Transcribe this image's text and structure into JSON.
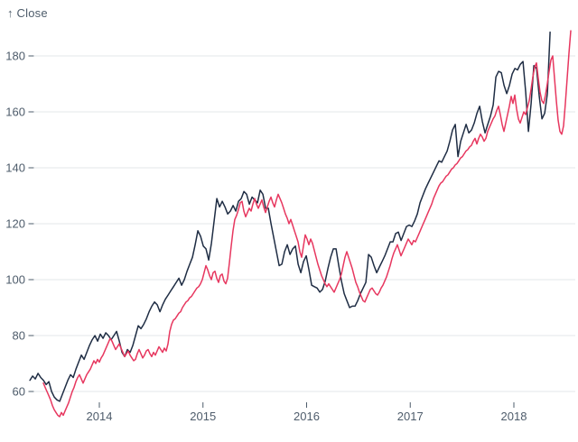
{
  "chart_data": {
    "type": "line",
    "title": "",
    "y_axis": {
      "title": "↑ Close",
      "ticks": [
        60,
        80,
        100,
        120,
        140,
        160,
        180
      ]
    },
    "x_axis": {
      "ticks": [
        2014,
        2015,
        2016,
        2017,
        2018
      ]
    },
    "xlim": [
      2013.3,
      2018.62
    ],
    "ylim": [
      50,
      194
    ],
    "grid": true,
    "legend": "none",
    "colors": {
      "navy": "#1f2d44",
      "crimson": "#e7375f",
      "axis_text": "#4e5c6b",
      "gridline": "#e3e7ea",
      "background": "#ffffff"
    },
    "series": [
      {
        "name": "dark-navy-close",
        "color": "#1f2d44",
        "start_x": 2013.33,
        "step_x": 0.026144,
        "values": [
          64,
          65.5,
          64.5,
          66.5,
          65,
          64,
          62.5,
          63.5,
          60,
          58,
          57,
          56.5,
          59,
          61.5,
          64,
          66,
          65,
          68,
          70.5,
          73,
          71.5,
          74,
          76.5,
          78.5,
          80,
          78,
          80.5,
          79,
          81,
          80,
          78.5,
          80,
          81.5,
          78,
          74,
          72.5,
          75,
          74,
          76.5,
          80,
          83.5,
          82.5,
          84,
          86,
          88.5,
          90.5,
          92,
          91,
          88.5,
          91,
          93,
          94.5,
          96,
          97.5,
          99,
          100.5,
          98,
          100,
          103,
          105.5,
          108,
          112.5,
          117.5,
          115.5,
          112,
          111,
          107,
          113,
          121,
          129,
          126,
          128,
          126,
          123.5,
          124.5,
          126.5,
          124.5,
          128,
          129,
          131.5,
          130.5,
          127,
          129.5,
          128.5,
          127.5,
          132,
          130.5,
          125.5,
          125.5,
          120,
          115,
          110,
          105,
          105.5,
          110,
          112.5,
          109,
          111,
          112,
          105.5,
          102.5,
          106.5,
          108.5,
          103.5,
          98,
          97.5,
          97,
          95.5,
          96.5,
          99.5,
          104,
          108,
          111,
          111,
          105,
          99.5,
          95,
          92.5,
          90,
          90.5,
          90.5,
          92.5,
          95,
          97,
          99,
          109,
          108,
          105,
          102.5,
          104.5,
          106.5,
          108.5,
          111,
          113.5,
          113.5,
          116.5,
          117,
          114,
          116.5,
          119,
          119.5,
          119,
          121,
          123.5,
          127.5,
          130,
          132.5,
          134.5,
          136.5,
          138.5,
          140.5,
          142.5,
          142,
          144,
          146,
          149.5,
          153.5,
          155.5,
          144,
          149.5,
          152.5,
          155.5,
          152.5,
          153.5,
          156,
          159.5,
          162,
          156.5,
          152.5,
          155.5,
          158.5,
          162.5,
          172.5,
          174.5,
          174,
          169.5,
          166.5,
          169.5,
          173.5,
          175.5,
          175,
          177,
          178,
          167,
          153,
          163,
          176.5,
          175.5,
          165.5,
          157.5,
          159.5,
          166.5,
          188.5
        ]
      },
      {
        "name": "crimson-close",
        "color": "#e7375f",
        "start_x": 2013.46,
        "step_x": 0.017429,
        "values": [
          63,
          61.5,
          60,
          58.5,
          57,
          55,
          53.5,
          52.5,
          51.5,
          51,
          52.5,
          51.5,
          53,
          54.5,
          56,
          58,
          60,
          61.5,
          63.5,
          65,
          66,
          64.5,
          63,
          64.5,
          66,
          67,
          68,
          69.5,
          71,
          70,
          71.5,
          70.5,
          72,
          73,
          74.5,
          76,
          77.5,
          79,
          78,
          76.5,
          75,
          76,
          77,
          75.5,
          74,
          72.5,
          73.5,
          74.5,
          73,
          72,
          71,
          71.5,
          73.5,
          75,
          73.5,
          72,
          73,
          74.5,
          75,
          73.5,
          72.5,
          74,
          73,
          74.5,
          76,
          75,
          74,
          75.5,
          74.5,
          77,
          81.5,
          84,
          85.5,
          86,
          87,
          88,
          88.5,
          90,
          91,
          92,
          92.5,
          93.5,
          94,
          95,
          96,
          97,
          97.5,
          98.5,
          100,
          102.5,
          105,
          103.5,
          101.5,
          100,
          102.5,
          103,
          100.5,
          99,
          101.5,
          102,
          99.5,
          98.5,
          100.5,
          106,
          112,
          117.5,
          121.5,
          123,
          125,
          127.5,
          128,
          124.5,
          122.5,
          124,
          125.5,
          124.5,
          127,
          129,
          127,
          125.5,
          127,
          128.5,
          126,
          124,
          126,
          128,
          129.5,
          127.5,
          126,
          128.5,
          130.5,
          129,
          127.5,
          125.5,
          123.5,
          122,
          120,
          121.5,
          119.5,
          117.5,
          115.5,
          113.5,
          110,
          108,
          112,
          116,
          114.5,
          112.5,
          114.5,
          113,
          110.5,
          108,
          105.5,
          103.5,
          101.5,
          100,
          98.5,
          97.5,
          98.5,
          97.5,
          96.5,
          95.5,
          97,
          98.5,
          100,
          102,
          105,
          108,
          110,
          108,
          106,
          104,
          101.5,
          99,
          97.5,
          95.5,
          94,
          92.5,
          92,
          93.5,
          95,
          96.5,
          97,
          96,
          95,
          94.5,
          95.5,
          97,
          98,
          99.5,
          101,
          103,
          105,
          107.5,
          109.5,
          111,
          112.5,
          110.5,
          108.5,
          110,
          111.5,
          113,
          114.5,
          113.5,
          112.5,
          114,
          113.5,
          115,
          116.5,
          118,
          119.5,
          121,
          122.5,
          124,
          125.5,
          127,
          129,
          130.5,
          132,
          133.5,
          134.5,
          135,
          136,
          137,
          137.5,
          138.5,
          139.5,
          140,
          141,
          141.5,
          142.5,
          143.5,
          144,
          145,
          146,
          146.5,
          147.5,
          148,
          149.5,
          150.5,
          148.5,
          150.5,
          152,
          151,
          149.5,
          150.5,
          153,
          154.5,
          156,
          157.5,
          158.5,
          160.5,
          162,
          159,
          155.5,
          153,
          156,
          159,
          162,
          165.5,
          163,
          166,
          161,
          157.5,
          156,
          158,
          160,
          159,
          161.5,
          164,
          168,
          172.5,
          176,
          177.5,
          172,
          167,
          164,
          163,
          166,
          170,
          174.5,
          178.5,
          180,
          172,
          164,
          157,
          153,
          152,
          155,
          163,
          172,
          181,
          189
        ]
      }
    ]
  }
}
